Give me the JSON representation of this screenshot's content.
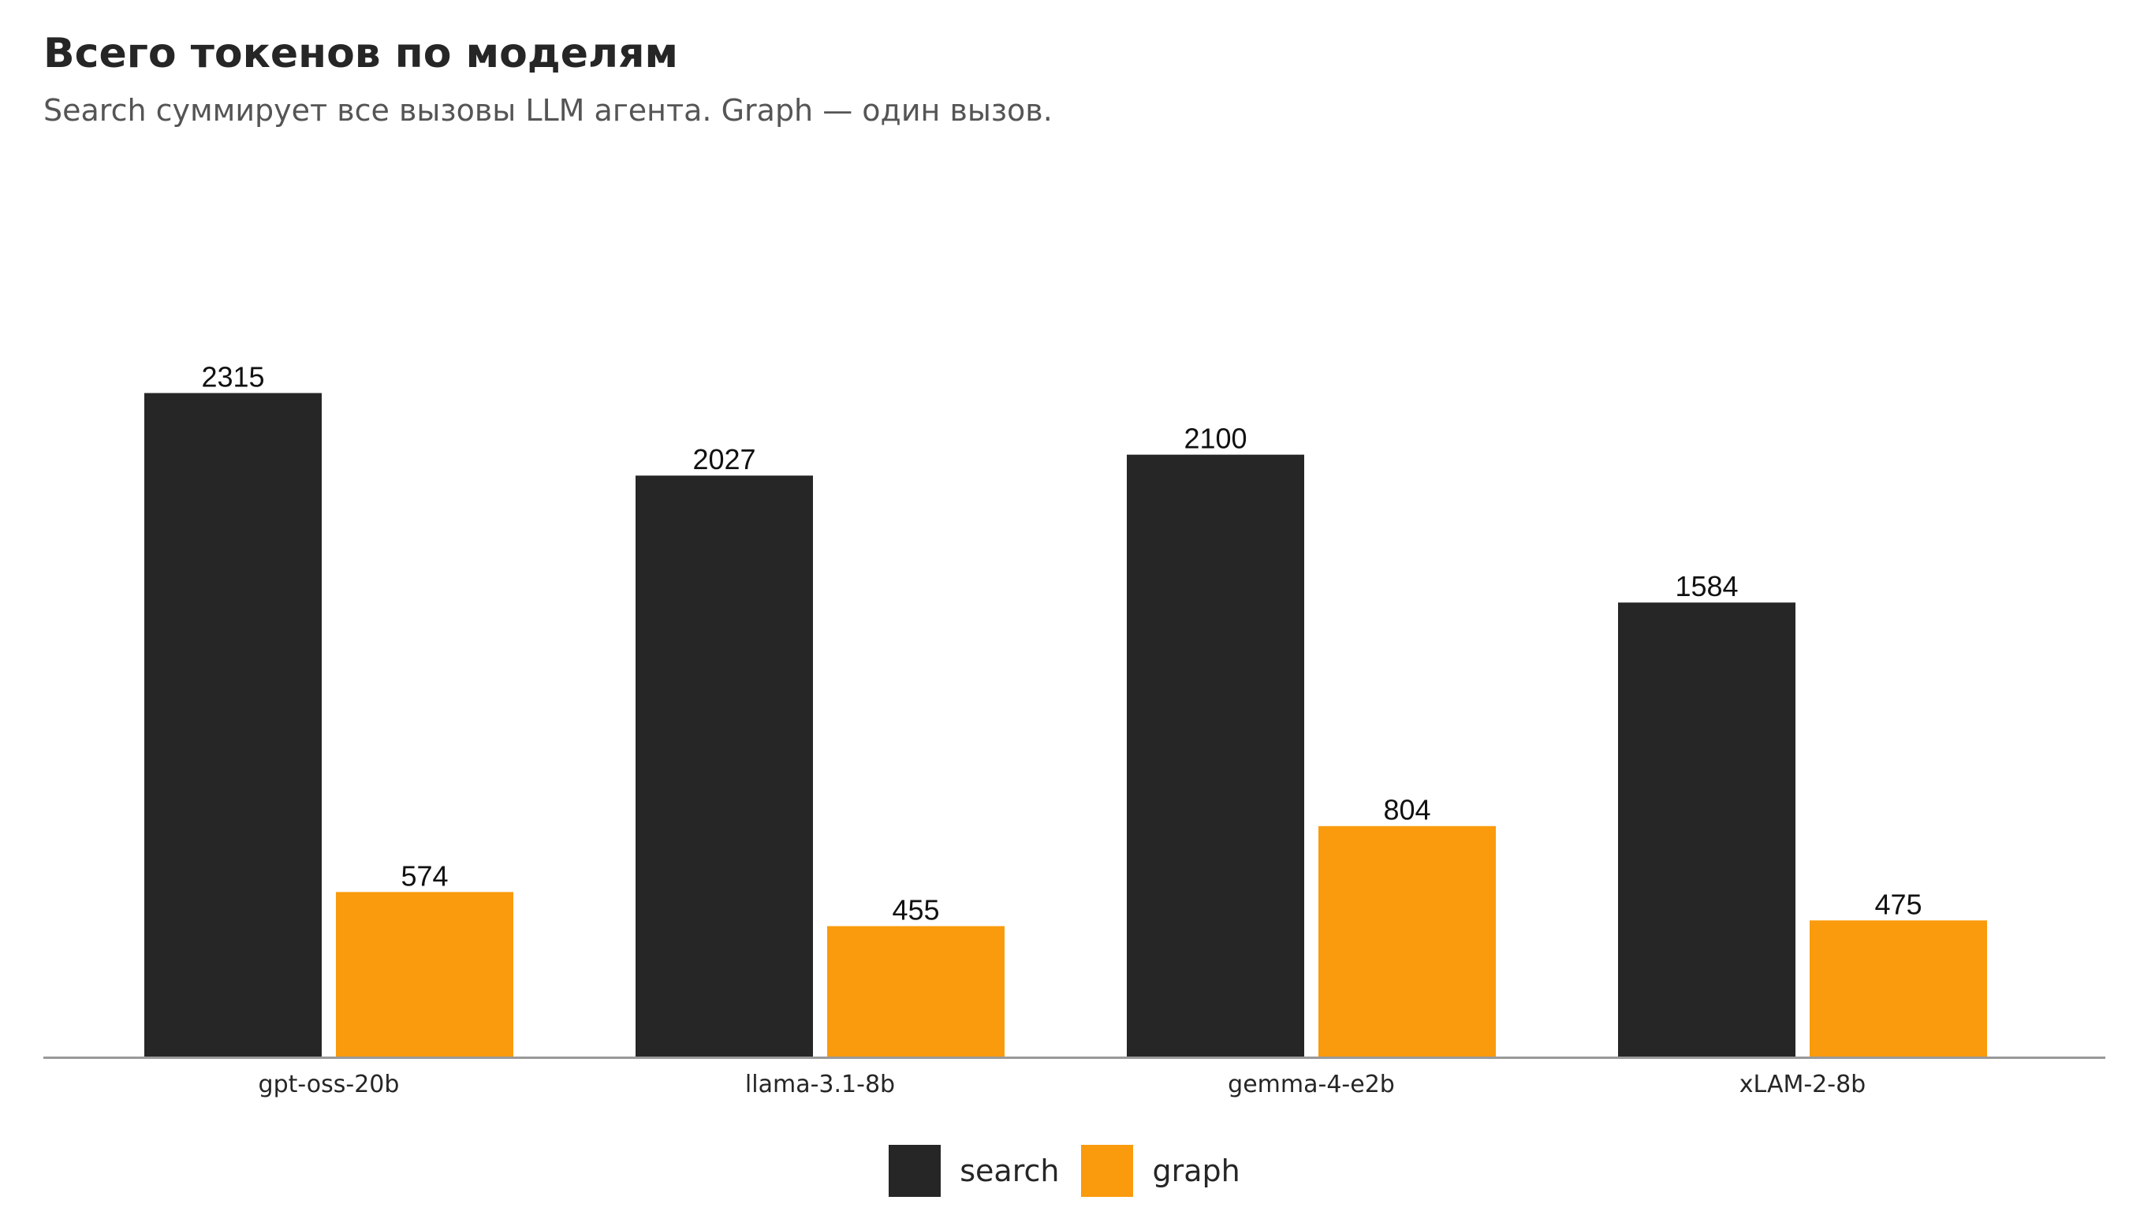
{
  "chart_data": {
    "type": "bar",
    "title": "Всего токенов по моделям",
    "subtitle": "Search суммирует все вызовы LLM агента. Graph — один вызов.",
    "categories": [
      "gpt-oss-20b",
      "llama-3.1-8b",
      "gemma-4-e2b",
      "xLAM-2-8b"
    ],
    "series": [
      {
        "name": "search",
        "values": [
          2315,
          2027,
          2100,
          1584
        ],
        "color": "#262626"
      },
      {
        "name": "graph",
        "values": [
          574,
          455,
          804,
          475
        ],
        "color": "#FA9A0D"
      }
    ],
    "ylim": [
      0,
      3200
    ],
    "grid": false,
    "legend_position": "bottom-center",
    "data_labels": true
  }
}
